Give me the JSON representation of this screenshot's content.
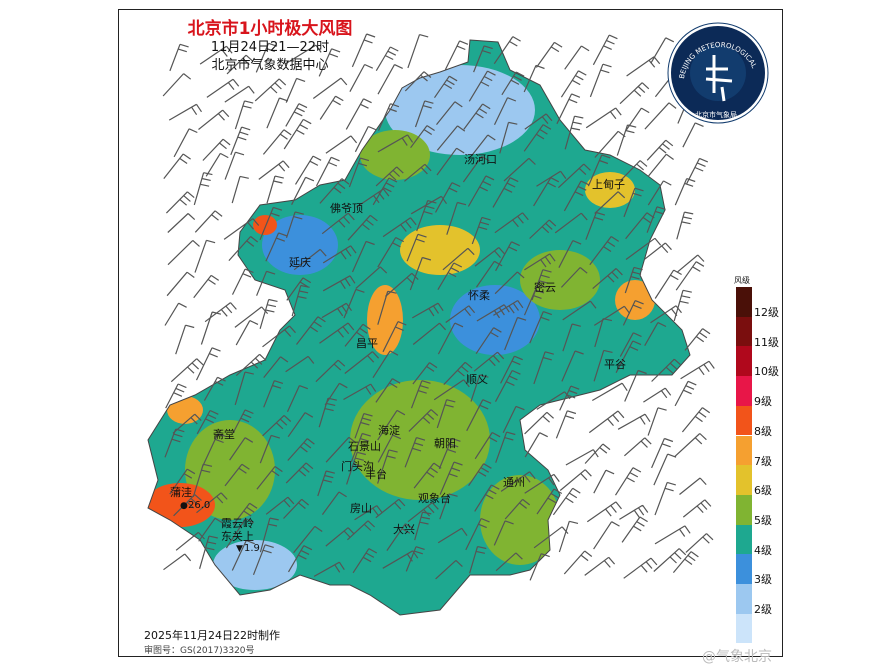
{
  "title": {
    "main": "北京市1小时极大风图",
    "time_range": "11月24日21—22时",
    "source": "北京市气象数据中心"
  },
  "logo": {
    "ring_text": "BEIJING METEOROLOGICAL SERVICE",
    "name": "北京市气象局",
    "icon": "beijing-meteorological-service-logo"
  },
  "places": [
    "汤河口",
    "上甸子",
    "佛爷顶",
    "延庆",
    "怀柔",
    "密云",
    "昌平",
    "平谷",
    "顺义",
    "海淀",
    "斋堂",
    "石景山",
    "朝阳",
    "门头沟",
    "丰台",
    "观象台",
    "通州",
    "蒲洼",
    "房山",
    "霞云岭",
    "东关上",
    "大兴"
  ],
  "stations": [
    {
      "name": "蒲洼",
      "marker": "max",
      "value": "26.0"
    },
    {
      "name": "东关上",
      "marker": "min",
      "value": "1.9"
    }
  ],
  "legend": {
    "title": "风级",
    "levels": [
      {
        "label": "12级",
        "color": "#4a1008"
      },
      {
        "label": "11级",
        "color": "#7a0e0e"
      },
      {
        "label": "10级",
        "color": "#b0081c"
      },
      {
        "label": "9级",
        "color": "#e81648"
      },
      {
        "label": "8级",
        "color": "#f2541a"
      },
      {
        "label": "7级",
        "color": "#f5a030"
      },
      {
        "label": "6级",
        "color": "#e3c22c"
      },
      {
        "label": "5级",
        "color": "#80b432"
      },
      {
        "label": "4级",
        "color": "#1ea890"
      },
      {
        "label": "3级",
        "color": "#3c90dc"
      },
      {
        "label": "2级",
        "color": "#9cc8f0"
      },
      {
        "label": "",
        "color": "#cce4fa"
      }
    ]
  },
  "footer": {
    "made": "2025年11月24日22时制作",
    "audit": "审图号：GS(2017)3320号",
    "watermark": "@气象北京"
  }
}
